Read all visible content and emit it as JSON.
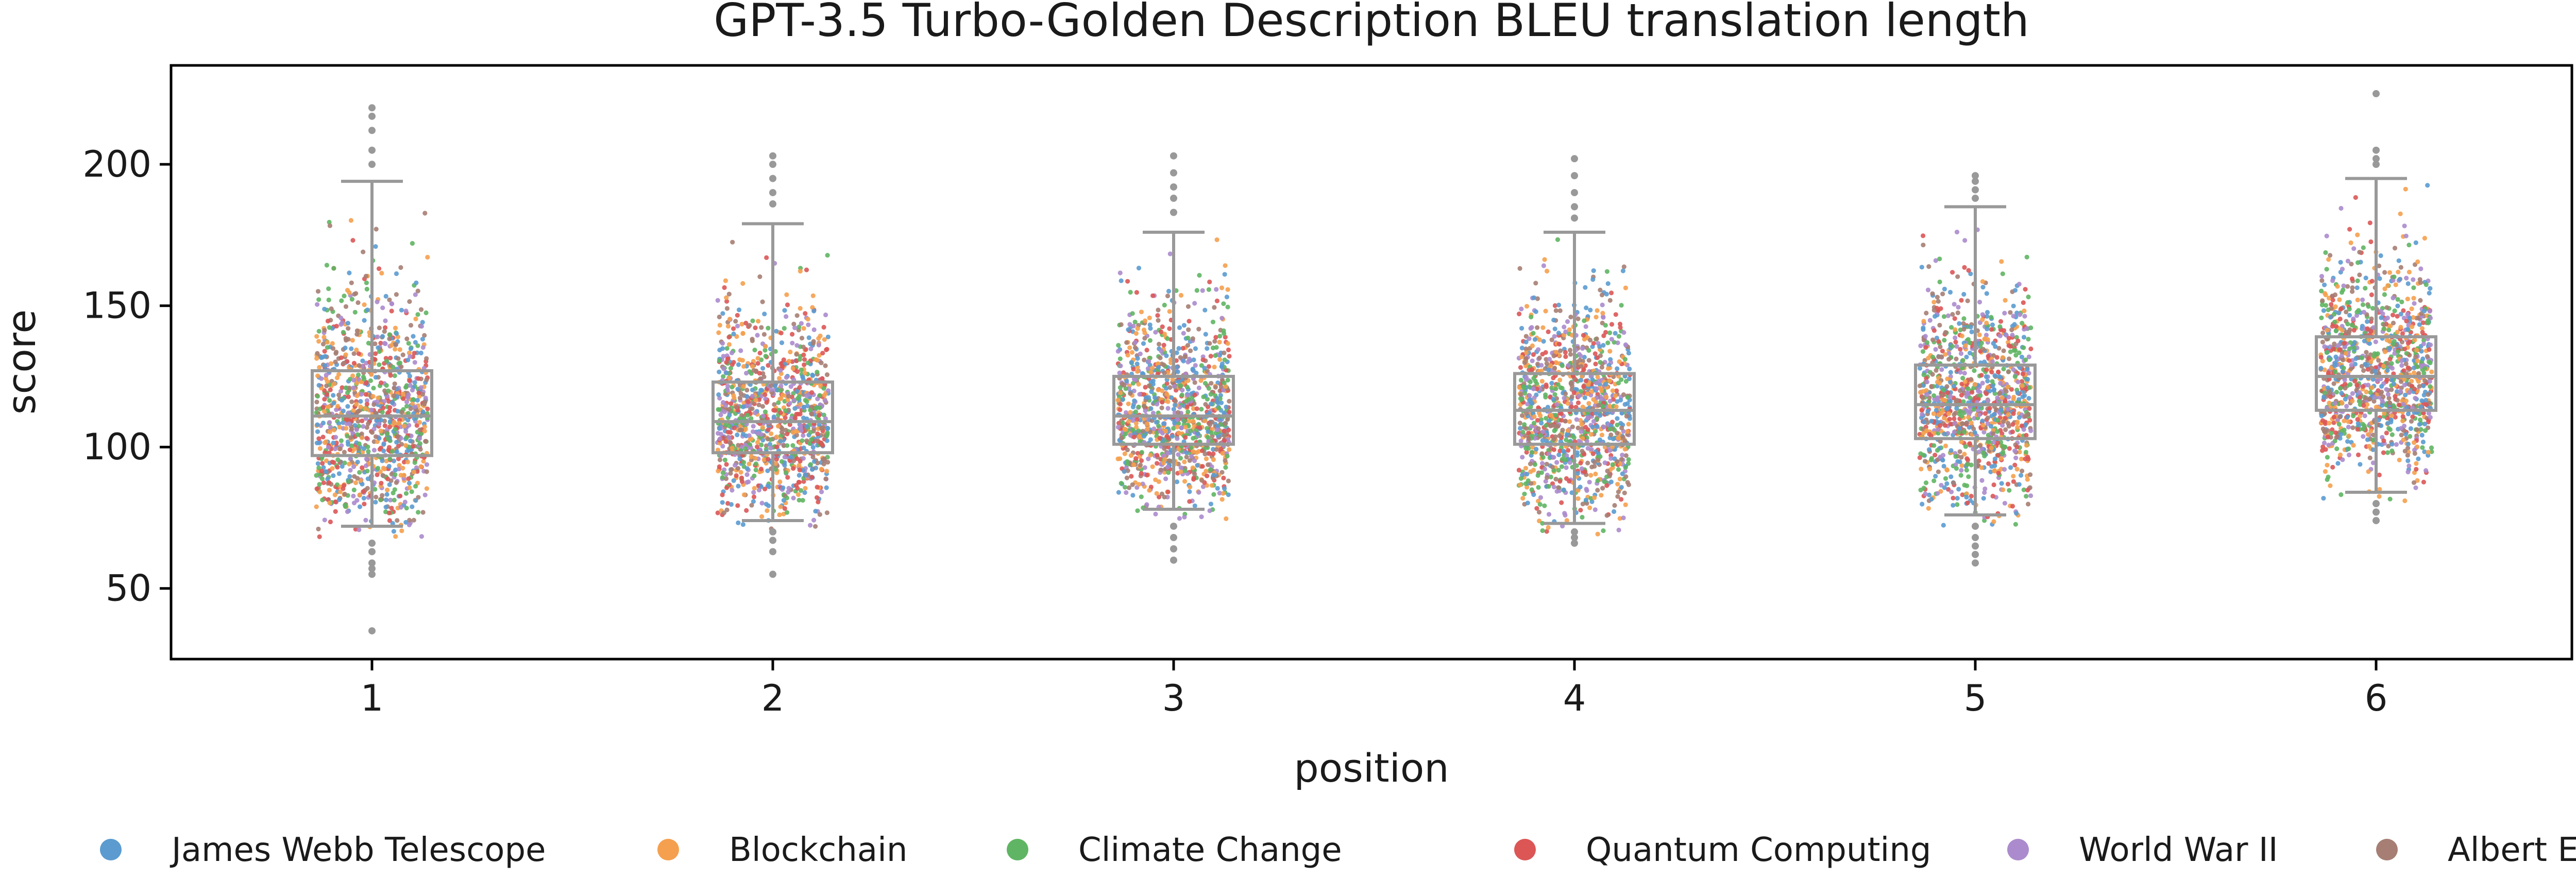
{
  "chart_data": {
    "type": "box-strip",
    "title": "GPT-3.5 Turbo-Golden Description BLEU translation length",
    "xlabel": "position",
    "ylabel": "score",
    "x_ticks": [
      "1",
      "2",
      "3",
      "4",
      "5",
      "6"
    ],
    "y_ticks": [
      50,
      100,
      150,
      200
    ],
    "ylim": [
      25,
      235
    ],
    "grid": false,
    "legend_placement": "bottom",
    "box_color": "#999999",
    "boxes": [
      {
        "position": "1",
        "q1": 97,
        "median": 111,
        "q3": 127,
        "whisker_low": 72,
        "whisker_high": 194,
        "n_points": 1100
      },
      {
        "position": "2",
        "q1": 98,
        "median": 109,
        "q3": 123,
        "whisker_low": 74,
        "whisker_high": 179,
        "n_points": 1100
      },
      {
        "position": "3",
        "q1": 101,
        "median": 111,
        "q3": 125,
        "whisker_low": 78,
        "whisker_high": 176,
        "n_points": 1100
      },
      {
        "position": "4",
        "q1": 101,
        "median": 113,
        "q3": 126,
        "whisker_low": 73,
        "whisker_high": 176,
        "n_points": 1100
      },
      {
        "position": "5",
        "q1": 103,
        "median": 115,
        "q3": 129,
        "whisker_low": 76,
        "whisker_high": 185,
        "n_points": 1100
      },
      {
        "position": "6",
        "q1": 113,
        "median": 125,
        "q3": 139,
        "whisker_low": 84,
        "whisker_high": 195,
        "n_points": 1100
      }
    ],
    "outliers": [
      {
        "position": "1",
        "values": [
          220,
          217,
          212,
          205,
          200,
          66,
          63,
          59,
          57,
          55,
          35
        ]
      },
      {
        "position": "2",
        "values": [
          203,
          200,
          195,
          190,
          186,
          70,
          67,
          63,
          55
        ]
      },
      {
        "position": "3",
        "values": [
          203,
          197,
          192,
          188,
          183,
          72,
          68,
          64,
          60
        ]
      },
      {
        "position": "4",
        "values": [
          202,
          196,
          190,
          185,
          181,
          70,
          68,
          66
        ]
      },
      {
        "position": "5",
        "values": [
          196,
          194,
          191,
          188,
          72,
          68,
          65,
          62,
          59
        ]
      },
      {
        "position": "6",
        "values": [
          225,
          205,
          202,
          200,
          80,
          77,
          74
        ]
      }
    ],
    "series": [
      {
        "name": "James Webb Telescope",
        "color": "#5b9bd0"
      },
      {
        "name": "Blockchain",
        "color": "#f5a04e"
      },
      {
        "name": "Climate Change",
        "color": "#5fb563"
      },
      {
        "name": "Quantum Computing",
        "color": "#dc5656"
      },
      {
        "name": "World War II",
        "color": "#ab8bcd"
      },
      {
        "name": "Albert Einstein",
        "color": "#a67e73"
      }
    ]
  }
}
